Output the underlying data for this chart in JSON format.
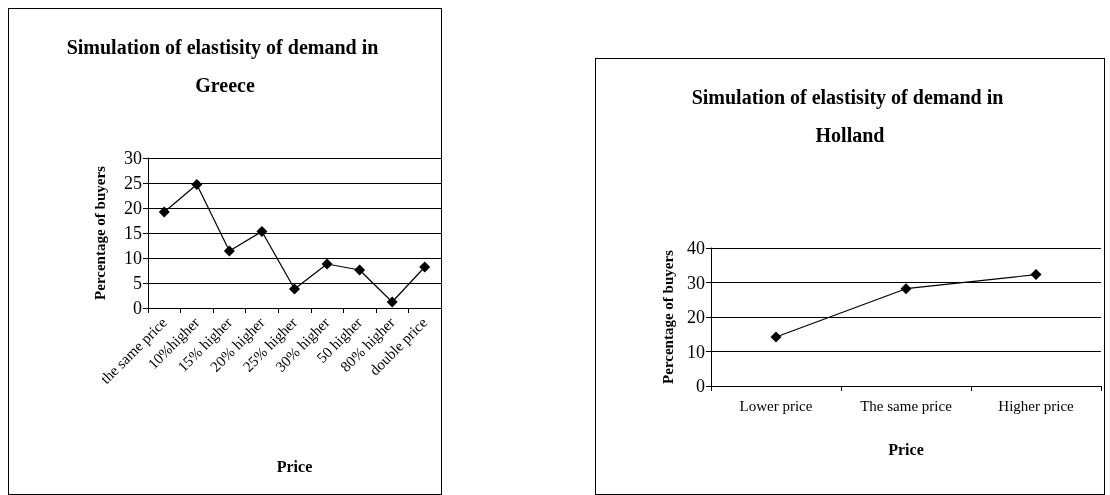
{
  "chart_data": [
    {
      "type": "line",
      "title": "Simulation of elastisity of demand in Greece",
      "xlabel": "Price",
      "ylabel": "Percentage of buyers",
      "categories": [
        "the same price",
        "10%higher",
        "15% higher",
        "20% higher",
        "25% higher",
        "30% higher",
        "50 higher",
        "80% higher",
        "double price"
      ],
      "series": [
        {
          "color": "#000000",
          "values": [
            19.2,
            24.7,
            11.4,
            15.3,
            3.8,
            8.8,
            7.6,
            1.2,
            8.2
          ]
        }
      ],
      "ylim": [
        0,
        30
      ],
      "yticks": [
        0,
        5,
        10,
        15,
        20,
        25,
        30
      ],
      "grid": "y",
      "marker": "diamond",
      "line_style": "solid"
    },
    {
      "type": "line",
      "title": "Simulation of elastisity of demand in Holland",
      "xlabel": "Price",
      "ylabel": "Percentage of buyers",
      "categories": [
        "Lower price",
        "The same price",
        "Higher price"
      ],
      "series": [
        {
          "color": "#000000",
          "values": [
            14.2,
            28.2,
            32.3
          ]
        }
      ],
      "ylim": [
        0,
        40
      ],
      "yticks": [
        0,
        10,
        20,
        30,
        40
      ],
      "grid": "y",
      "marker": "diamond",
      "line_style": "solid"
    }
  ]
}
